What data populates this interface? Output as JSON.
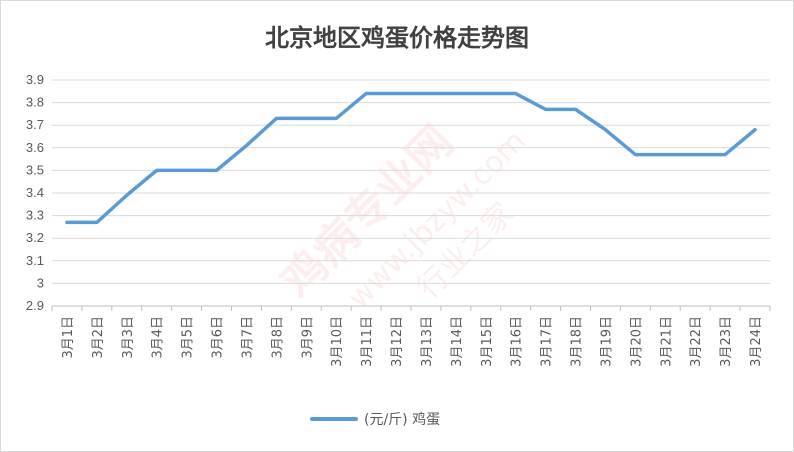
{
  "chart_data": {
    "type": "line",
    "title": "北京地区鸡蛋价格走势图",
    "categories": [
      "3月1日",
      "3月2日",
      "3月3日",
      "3月4日",
      "3月5日",
      "3月6日",
      "3月7日",
      "3月8日",
      "3月9日",
      "3月10日",
      "3月11日",
      "3月12日",
      "3月13日",
      "3月14日",
      "3月15日",
      "3月16日",
      "3月17日",
      "3月18日",
      "3月19日",
      "3月20日",
      "3月21日",
      "3月22日",
      "3月23日",
      "3月24日"
    ],
    "series": [
      {
        "name": "(元/斤) 鸡蛋",
        "color": "#5b9bd5",
        "values": [
          3.27,
          3.27,
          3.39,
          3.5,
          3.5,
          3.5,
          3.61,
          3.73,
          3.73,
          3.73,
          3.84,
          3.84,
          3.84,
          3.84,
          3.84,
          3.84,
          3.77,
          3.77,
          3.68,
          3.57,
          3.57,
          3.57,
          3.57,
          3.68
        ]
      }
    ],
    "ylim": [
      2.9,
      3.9
    ],
    "yticks": [
      "2.9",
      "3",
      "3.1",
      "3.2",
      "3.3",
      "3.4",
      "3.5",
      "3.6",
      "3.7",
      "3.8",
      "3.9"
    ],
    "grid": "horizontal",
    "legend_position": "bottom"
  },
  "watermark": {
    "main": "鸡病专业网",
    "url": "www.jbzyw.com",
    "sub": "行业之家"
  }
}
